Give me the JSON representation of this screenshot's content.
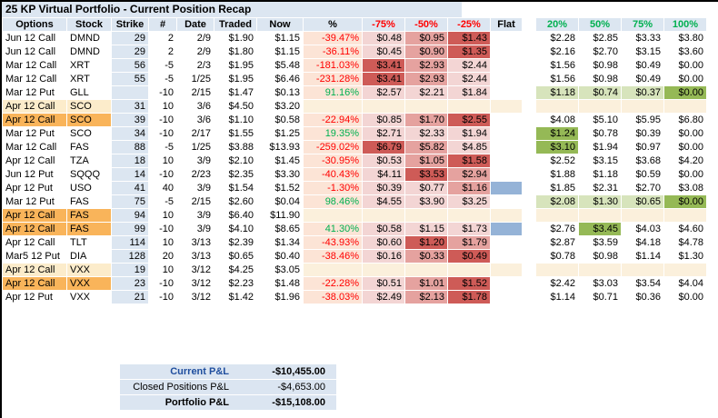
{
  "title": "25 KP Virtual Portfolio - Current Position Recap",
  "colors": {
    "header_bg": "#DCE6F1",
    "pct_bg": "#FCE4D6",
    "loss_light": "#F3D5D4",
    "loss_med": "#E5A29F",
    "loss_strong": "#CE5B57",
    "gain_light": "#D7E4BC",
    "gain_strong": "#95B956",
    "flat_fill": "#95B3D7",
    "hl_orange": "#F9B45A",
    "hl_cream": "#FCECCB",
    "blank_fill": "#FBF0DC",
    "neg": "#FF0000",
    "pos": "#00B050",
    "summary_bg": "#DBE5F1",
    "summary_blue": "#1F4E9E"
  },
  "columns": [
    {
      "key": "options",
      "label": "Options"
    },
    {
      "key": "stock",
      "label": "Stock"
    },
    {
      "key": "strike",
      "label": "Strike"
    },
    {
      "key": "qty",
      "label": "#"
    },
    {
      "key": "date",
      "label": "Date"
    },
    {
      "key": "traded",
      "label": "Traded"
    },
    {
      "key": "now",
      "label": "Now"
    },
    {
      "key": "pct",
      "label": "%"
    },
    {
      "key": "loss75",
      "label": "-75%",
      "tone": "red"
    },
    {
      "key": "loss50",
      "label": "-50%",
      "tone": "red"
    },
    {
      "key": "loss25",
      "label": "-25%",
      "tone": "red"
    },
    {
      "key": "flat",
      "label": "Flat"
    },
    {
      "key": "gain20",
      "label": "20%",
      "tone": "green"
    },
    {
      "key": "gain50",
      "label": "50%",
      "tone": "green"
    },
    {
      "key": "gain75",
      "label": "75%",
      "tone": "green"
    },
    {
      "key": "gain100",
      "label": "100%",
      "tone": "green"
    }
  ],
  "rows": [
    {
      "options": "Jun 12 Call",
      "stock": "DMND",
      "strike": "29",
      "qty": "2",
      "date": "2/9",
      "traded": "$1.90",
      "now": "$1.15",
      "pct": "-39.47%",
      "pct_dir": "neg",
      "hl": "",
      "blank": false,
      "loss": [
        "$0.48",
        "$0.95",
        "$1.43"
      ],
      "loss_shades": [
        "l",
        "m",
        "s"
      ],
      "flat": false,
      "gain": [
        "$2.28",
        "$2.85",
        "$3.33",
        "$3.80"
      ],
      "gain_shades": [
        "",
        "",
        "",
        ""
      ]
    },
    {
      "options": "Jun 12 Call",
      "stock": "DMND",
      "strike": "29",
      "qty": "2",
      "date": "2/9",
      "traded": "$1.80",
      "now": "$1.15",
      "pct": "-36.11%",
      "pct_dir": "neg",
      "hl": "",
      "blank": false,
      "loss": [
        "$0.45",
        "$0.90",
        "$1.35"
      ],
      "loss_shades": [
        "l",
        "m",
        "s"
      ],
      "flat": false,
      "gain": [
        "$2.16",
        "$2.70",
        "$3.15",
        "$3.60"
      ],
      "gain_shades": [
        "",
        "",
        "",
        ""
      ]
    },
    {
      "options": "Mar 12 Call",
      "stock": "XRT",
      "strike": "56",
      "qty": "-5",
      "date": "2/3",
      "traded": "$1.95",
      "now": "$5.48",
      "pct": "-181.03%",
      "pct_dir": "neg",
      "hl": "",
      "blank": false,
      "loss": [
        "$3.41",
        "$2.93",
        "$2.44"
      ],
      "loss_shades": [
        "s",
        "m",
        "l"
      ],
      "flat": false,
      "gain": [
        "$1.56",
        "$0.98",
        "$0.49",
        "$0.00"
      ],
      "gain_shades": [
        "",
        "",
        "",
        ""
      ]
    },
    {
      "options": "Mar 12 Call",
      "stock": "XRT",
      "strike": "55",
      "qty": "-5",
      "date": "1/25",
      "traded": "$1.95",
      "now": "$6.46",
      "pct": "-231.28%",
      "pct_dir": "neg",
      "hl": "",
      "blank": false,
      "loss": [
        "$3.41",
        "$2.93",
        "$2.44"
      ],
      "loss_shades": [
        "s",
        "m",
        "l"
      ],
      "flat": false,
      "gain": [
        "$1.56",
        "$0.98",
        "$0.49",
        "$0.00"
      ],
      "gain_shades": [
        "",
        "",
        "",
        ""
      ]
    },
    {
      "options": "Mar 12 Put",
      "stock": "GLL",
      "strike": "",
      "qty": "-10",
      "date": "2/15",
      "traded": "$1.47",
      "now": "$0.13",
      "pct": "91.16%",
      "pct_dir": "pos",
      "hl": "",
      "blank": false,
      "loss": [
        "$2.57",
        "$2.21",
        "$1.84"
      ],
      "loss_shades": [
        "l",
        "l",
        "l"
      ],
      "flat": false,
      "gain": [
        "$1.18",
        "$0.74",
        "$0.37",
        "$0.00"
      ],
      "gain_shades": [
        "lg",
        "lg",
        "lg",
        "sg"
      ]
    },
    {
      "options": "Apr 12 Call",
      "stock": "SCO",
      "strike": "31",
      "qty": "10",
      "date": "3/6",
      "traded": "$4.50",
      "now": "$3.20",
      "pct": "",
      "pct_dir": "",
      "hl": "cream",
      "blank": true,
      "loss": [
        "",
        "",
        ""
      ],
      "loss_shades": [
        "",
        "",
        ""
      ],
      "flat": false,
      "gain": [
        "",
        "",
        "",
        ""
      ],
      "gain_shades": [
        "",
        "",
        "",
        ""
      ]
    },
    {
      "options": "Apr 12 Call",
      "stock": "SCO",
      "strike": "39",
      "qty": "-10",
      "date": "3/6",
      "traded": "$1.10",
      "now": "$0.58",
      "pct": "-22.94%",
      "pct_dir": "neg",
      "hl": "orange",
      "blank": false,
      "loss": [
        "$0.85",
        "$1.70",
        "$2.55"
      ],
      "loss_shades": [
        "l",
        "m",
        "s"
      ],
      "flat": false,
      "gain": [
        "$4.08",
        "$5.10",
        "$5.95",
        "$6.80"
      ],
      "gain_shades": [
        "",
        "",
        "",
        ""
      ]
    },
    {
      "options": "Mar 12 Put",
      "stock": "SCO",
      "strike": "34",
      "qty": "-10",
      "date": "2/17",
      "traded": "$1.55",
      "now": "$1.25",
      "pct": "19.35%",
      "pct_dir": "pos",
      "hl": "",
      "blank": false,
      "loss": [
        "$2.71",
        "$2.33",
        "$1.94"
      ],
      "loss_shades": [
        "l",
        "l",
        "l"
      ],
      "flat": false,
      "gain": [
        "$1.24",
        "$0.78",
        "$0.39",
        "$0.00"
      ],
      "gain_shades": [
        "sg",
        "",
        "",
        ""
      ]
    },
    {
      "options": "Mar 12 Call",
      "stock": "FAS",
      "strike": "88",
      "qty": "-5",
      "date": "1/25",
      "traded": "$3.88",
      "now": "$13.93",
      "pct": "-259.02%",
      "pct_dir": "neg",
      "hl": "",
      "blank": false,
      "loss": [
        "$6.79",
        "$5.82",
        "$4.85"
      ],
      "loss_shades": [
        "s",
        "m",
        "l"
      ],
      "flat": false,
      "gain": [
        "$3.10",
        "$1.94",
        "$0.97",
        "$0.00"
      ],
      "gain_shades": [
        "sg",
        "",
        "",
        ""
      ]
    },
    {
      "options": "Apr 12 Call",
      "stock": "TZA",
      "strike": "18",
      "qty": "10",
      "date": "3/9",
      "traded": "$2.10",
      "now": "$1.45",
      "pct": "-30.95%",
      "pct_dir": "neg",
      "hl": "",
      "blank": false,
      "loss": [
        "$0.53",
        "$1.05",
        "$1.58"
      ],
      "loss_shades": [
        "l",
        "m",
        "s"
      ],
      "flat": false,
      "gain": [
        "$2.52",
        "$3.15",
        "$3.68",
        "$4.20"
      ],
      "gain_shades": [
        "",
        "",
        "",
        ""
      ]
    },
    {
      "options": "Jun 12 Put",
      "stock": "SQQQ",
      "strike": "14",
      "qty": "-10",
      "date": "2/23",
      "traded": "$2.35",
      "now": "$3.30",
      "pct": "-40.43%",
      "pct_dir": "neg",
      "hl": "",
      "blank": false,
      "loss": [
        "$4.11",
        "$3.53",
        "$2.94"
      ],
      "loss_shades": [
        "l",
        "s",
        "m"
      ],
      "flat": false,
      "gain": [
        "$1.88",
        "$1.18",
        "$0.59",
        "$0.00"
      ],
      "gain_shades": [
        "",
        "",
        "",
        ""
      ]
    },
    {
      "options": "Apr 12 Put",
      "stock": "USO",
      "strike": "41",
      "qty": "40",
      "date": "3/9",
      "traded": "$1.54",
      "now": "$1.52",
      "pct": "-1.30%",
      "pct_dir": "neg",
      "hl": "",
      "blank": false,
      "loss": [
        "$0.39",
        "$0.77",
        "$1.16"
      ],
      "loss_shades": [
        "l",
        "l",
        "m"
      ],
      "flat": true,
      "gain": [
        "$1.85",
        "$2.31",
        "$2.70",
        "$3.08"
      ],
      "gain_shades": [
        "",
        "",
        "",
        ""
      ]
    },
    {
      "options": "Mar 12 Put",
      "stock": "FAS",
      "strike": "75",
      "qty": "-5",
      "date": "2/15",
      "traded": "$2.60",
      "now": "$0.04",
      "pct": "98.46%",
      "pct_dir": "pos",
      "hl": "",
      "blank": false,
      "loss": [
        "$4.55",
        "$3.90",
        "$3.25"
      ],
      "loss_shades": [
        "l",
        "l",
        "l"
      ],
      "flat": false,
      "gain": [
        "$2.08",
        "$1.30",
        "$0.65",
        "$0.00"
      ],
      "gain_shades": [
        "lg",
        "lg",
        "lg",
        "sg"
      ]
    },
    {
      "options": "Apr 12 Call",
      "stock": "FAS",
      "strike": "94",
      "qty": "10",
      "date": "3/9",
      "traded": "$6.40",
      "now": "$11.90",
      "pct": "",
      "pct_dir": "",
      "hl": "orange",
      "blank": true,
      "loss": [
        "",
        "",
        ""
      ],
      "loss_shades": [
        "",
        "",
        ""
      ],
      "flat": false,
      "gain": [
        "",
        "",
        "",
        ""
      ],
      "gain_shades": [
        "",
        "",
        "",
        ""
      ]
    },
    {
      "options": "Apr 12 Call",
      "stock": "FAS",
      "strike": "99",
      "qty": "-10",
      "date": "3/9",
      "traded": "$4.10",
      "now": "$8.65",
      "pct": "41.30%",
      "pct_dir": "pos",
      "hl": "orange",
      "blank": false,
      "loss": [
        "$0.58",
        "$1.15",
        "$1.73"
      ],
      "loss_shades": [
        "l",
        "l",
        "l"
      ],
      "flat": true,
      "gain": [
        "$2.76",
        "$3.45",
        "$4.03",
        "$4.60"
      ],
      "gain_shades": [
        "",
        "sg",
        "",
        ""
      ]
    },
    {
      "options": "Apr 12 Call",
      "stock": "TLT",
      "strike": "114",
      "qty": "10",
      "date": "3/13",
      "traded": "$2.39",
      "now": "$1.34",
      "pct": "-43.93%",
      "pct_dir": "neg",
      "hl": "",
      "blank": false,
      "loss": [
        "$0.60",
        "$1.20",
        "$1.79"
      ],
      "loss_shades": [
        "l",
        "s",
        "m"
      ],
      "flat": false,
      "gain": [
        "$2.87",
        "$3.59",
        "$4.18",
        "$4.78"
      ],
      "gain_shades": [
        "",
        "",
        "",
        ""
      ]
    },
    {
      "options": "Mar5 12 Put",
      "stock": "DIA",
      "strike": "128",
      "qty": "20",
      "date": "3/13",
      "traded": "$0.65",
      "now": "$0.40",
      "pct": "-38.46%",
      "pct_dir": "neg",
      "hl": "",
      "blank": false,
      "loss": [
        "$0.16",
        "$0.33",
        "$0.49"
      ],
      "loss_shades": [
        "l",
        "m",
        "s"
      ],
      "flat": false,
      "gain": [
        "$0.78",
        "$0.98",
        "$1.14",
        "$1.30"
      ],
      "gain_shades": [
        "",
        "",
        "",
        ""
      ]
    },
    {
      "options": "Apr 12 Call",
      "stock": "VXX",
      "strike": "19",
      "qty": "10",
      "date": "3/12",
      "traded": "$4.25",
      "now": "$3.05",
      "pct": "",
      "pct_dir": "",
      "hl": "cream",
      "blank": true,
      "loss": [
        "",
        "",
        ""
      ],
      "loss_shades": [
        "",
        "",
        ""
      ],
      "flat": false,
      "gain": [
        "",
        "",
        "",
        ""
      ],
      "gain_shades": [
        "",
        "",
        "",
        ""
      ]
    },
    {
      "options": "Apr 12 Call",
      "stock": "VXX",
      "strike": "23",
      "qty": "-10",
      "date": "3/12",
      "traded": "$2.23",
      "now": "$1.48",
      "pct": "-22.28%",
      "pct_dir": "neg",
      "hl": "orange",
      "blank": false,
      "loss": [
        "$0.51",
        "$1.01",
        "$1.52"
      ],
      "loss_shades": [
        "l",
        "m",
        "s"
      ],
      "flat": false,
      "gain": [
        "$2.42",
        "$3.03",
        "$3.54",
        "$4.04"
      ],
      "gain_shades": [
        "",
        "",
        "",
        ""
      ]
    },
    {
      "options": "Apr 12 Put",
      "stock": "VXX",
      "strike": "21",
      "qty": "-10",
      "date": "3/12",
      "traded": "$1.42",
      "now": "$1.96",
      "pct": "-38.03%",
      "pct_dir": "neg",
      "hl": "",
      "blank": false,
      "loss": [
        "$2.49",
        "$2.13",
        "$1.78"
      ],
      "loss_shades": [
        "l",
        "m",
        "s"
      ],
      "flat": false,
      "gain": [
        "$1.14",
        "$0.71",
        "$0.36",
        "$0.00"
      ],
      "gain_shades": [
        "",
        "",
        "",
        ""
      ]
    }
  ],
  "summary": {
    "rows": [
      {
        "label": "Current P&L",
        "value": "-$10,455.00",
        "label_class": "blue",
        "value_class": "bold"
      },
      {
        "label": "Closed Positions P&L",
        "value": "-$4,653.00",
        "label_class": "",
        "value_class": ""
      },
      {
        "label": "Portfolio P&L",
        "value": "-$15,108.00",
        "label_class": "bold",
        "value_class": "bold"
      }
    ]
  }
}
